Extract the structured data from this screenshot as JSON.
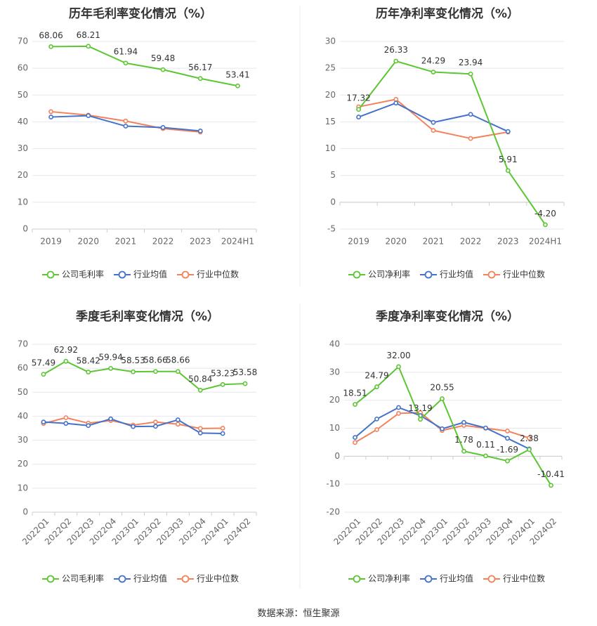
{
  "footer": {
    "source_label": "数据来源：恒生聚源"
  },
  "colors": {
    "company": "#5cc633",
    "industry_avg": "#4472ca",
    "industry_median": "#f3825a",
    "grid": "#e6e8ee",
    "axis_text": "#666666",
    "title": "#333333",
    "divider": "#eeeeee"
  },
  "chart_data": [
    {
      "type": "line",
      "title": "历年毛利率变化情况（%）",
      "categories": [
        "2019",
        "2020",
        "2021",
        "2022",
        "2023",
        "2024H1"
      ],
      "ylim": [
        0,
        70
      ],
      "yticks": [
        0,
        10,
        20,
        30,
        40,
        50,
        60,
        70
      ],
      "grid": true,
      "legend_position": "bottom-center",
      "x_tick_rotation": 0,
      "series": [
        {
          "name": "公司毛利率",
          "color_key": "company",
          "labeled": true,
          "values": [
            68.06,
            68.21,
            61.94,
            59.48,
            56.17,
            53.41
          ],
          "labels": [
            "68.06",
            "68.21",
            "61.94",
            "59.48",
            "56.17",
            "53.41"
          ]
        },
        {
          "name": "行业均值",
          "color_key": "industry_avg",
          "labeled": false,
          "values": [
            41.8,
            42.3,
            38.4,
            37.9,
            36.6,
            null
          ]
        },
        {
          "name": "行业中位数",
          "color_key": "industry_median",
          "labeled": false,
          "values": [
            43.8,
            42.5,
            40.3,
            37.5,
            36.2,
            null
          ]
        }
      ]
    },
    {
      "type": "line",
      "title": "历年净利率变化情况（%）",
      "categories": [
        "2019",
        "2020",
        "2021",
        "2022",
        "2023",
        "2024H1"
      ],
      "ylim": [
        -5,
        30
      ],
      "yticks": [
        -5,
        0,
        5,
        10,
        15,
        20,
        25,
        30
      ],
      "grid": true,
      "legend_position": "bottom-center",
      "x_tick_rotation": 0,
      "series": [
        {
          "name": "公司净利率",
          "color_key": "company",
          "labeled": true,
          "values": [
            17.32,
            26.33,
            24.29,
            23.94,
            5.91,
            -4.2
          ],
          "labels": [
            "17.32",
            "26.33",
            "24.29",
            "23.94",
            "5.91",
            "-4.20"
          ]
        },
        {
          "name": "行业均值",
          "color_key": "industry_avg",
          "labeled": false,
          "values": [
            15.9,
            18.5,
            14.9,
            16.4,
            13.2,
            null
          ]
        },
        {
          "name": "行业中位数",
          "color_key": "industry_median",
          "labeled": false,
          "values": [
            17.8,
            19.2,
            13.4,
            11.9,
            13.1,
            null
          ]
        }
      ]
    },
    {
      "type": "line",
      "title": "季度毛利率变化情况（%）",
      "categories": [
        "2022Q1",
        "2022Q2",
        "2022Q3",
        "2022Q4",
        "2023Q1",
        "2023Q2",
        "2023Q3",
        "2023Q4",
        "2024Q1",
        "2024Q2"
      ],
      "ylim": [
        0,
        70
      ],
      "yticks": [
        0,
        10,
        20,
        30,
        40,
        50,
        60,
        70
      ],
      "grid": true,
      "legend_position": "bottom-center",
      "x_tick_rotation": -45,
      "series": [
        {
          "name": "公司毛利率",
          "color_key": "company",
          "labeled": true,
          "values": [
            57.49,
            62.92,
            58.42,
            59.94,
            58.53,
            58.66,
            58.66,
            50.84,
            53.23,
            53.58
          ],
          "labels": [
            "57.49",
            "62.92",
            "58.42",
            "59.94",
            "58.53",
            "58.66",
            "58.66",
            "50.84",
            "53.23",
            "53.58"
          ]
        },
        {
          "name": "行业均值",
          "color_key": "industry_avg",
          "labeled": false,
          "values": [
            37.6,
            37.0,
            36.1,
            38.9,
            35.7,
            35.8,
            38.5,
            33.0,
            32.8,
            null
          ]
        },
        {
          "name": "行业中位数",
          "color_key": "industry_median",
          "labeled": false,
          "values": [
            37.0,
            39.4,
            37.1,
            38.2,
            36.3,
            37.6,
            36.7,
            34.9,
            35.0,
            null
          ]
        }
      ]
    },
    {
      "type": "line",
      "title": "季度净利率变化情况（%）",
      "categories": [
        "2022Q1",
        "2022Q2",
        "2022Q3",
        "2022Q4",
        "2023Q1",
        "2023Q2",
        "2023Q3",
        "2023Q4",
        "2024Q1",
        "2024Q2"
      ],
      "ylim": [
        -20,
        40
      ],
      "yticks": [
        -20,
        -10,
        0,
        10,
        20,
        30,
        40
      ],
      "grid": true,
      "legend_position": "bottom-center",
      "x_tick_rotation": -45,
      "series": [
        {
          "name": "公司净利率",
          "color_key": "company",
          "labeled": true,
          "values": [
            18.51,
            24.79,
            32.0,
            13.19,
            20.55,
            1.78,
            0.11,
            -1.69,
            2.38,
            -10.41
          ],
          "labels": [
            "18.51",
            "24.79",
            "32.00",
            "13.19",
            "20.55",
            "1.78",
            "0.11",
            "-1.69",
            "2.38",
            "-10.41"
          ]
        },
        {
          "name": "行业均值",
          "color_key": "industry_avg",
          "labeled": false,
          "values": [
            6.7,
            13.3,
            17.4,
            14.5,
            9.8,
            12.1,
            10.1,
            6.4,
            2.6,
            null
          ]
        },
        {
          "name": "行业中位数",
          "color_key": "industry_median",
          "labeled": false,
          "values": [
            4.9,
            9.5,
            15.3,
            15.6,
            9.2,
            11.0,
            10.0,
            9.0,
            6.5,
            null
          ]
        }
      ]
    }
  ]
}
